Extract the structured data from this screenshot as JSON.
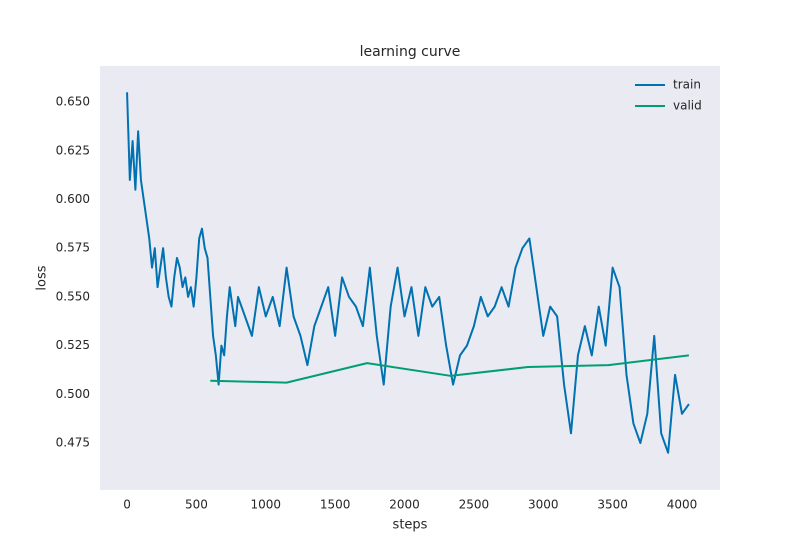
{
  "chart_data": {
    "type": "line",
    "title": "learning curve",
    "x_label": "steps",
    "y_label": "loss",
    "xlim": [
      -195,
      4274
    ],
    "ylim": [
      0.4509,
      0.6685
    ],
    "xticks": [
      0,
      500,
      1000,
      1500,
      2000,
      2500,
      3000,
      3500,
      4000
    ],
    "yticks": [
      0.475,
      {
        "value": 0.5,
        "label": "0.500"
      },
      0.525,
      {
        "value": 0.55,
        "label": "0.550"
      },
      0.575,
      {
        "value": 0.6,
        "label": "0.600"
      },
      0.625,
      {
        "value": 0.65,
        "label": "0.650"
      }
    ],
    "grid": false,
    "legend": "upper right",
    "series": [
      {
        "name": "train",
        "color": "#0072b2",
        "x": [
          0,
          20,
          40,
          60,
          80,
          100,
          120,
          140,
          160,
          180,
          200,
          220,
          240,
          260,
          280,
          300,
          320,
          340,
          360,
          380,
          400,
          420,
          440,
          460,
          480,
          500,
          520,
          540,
          560,
          580,
          600,
          620,
          640,
          660,
          680,
          700,
          720,
          740,
          760,
          780,
          800,
          850,
          900,
          950,
          1000,
          1050,
          1100,
          1150,
          1200,
          1250,
          1300,
          1350,
          1400,
          1450,
          1500,
          1550,
          1600,
          1650,
          1700,
          1750,
          1800,
          1850,
          1900,
          1950,
          2000,
          2050,
          2100,
          2150,
          2200,
          2250,
          2300,
          2350,
          2400,
          2450,
          2500,
          2550,
          2600,
          2650,
          2700,
          2750,
          2800,
          2850,
          2900,
          2950,
          3000,
          3050,
          3100,
          3150,
          3200,
          3250,
          3300,
          3350,
          3400,
          3450,
          3500,
          3550,
          3600,
          3650,
          3700,
          3750,
          3800,
          3850,
          3900,
          3950,
          4000,
          4050
        ],
        "values": [
          0.655,
          0.61,
          0.63,
          0.605,
          0.635,
          0.61,
          0.6,
          0.59,
          0.58,
          0.565,
          0.575,
          0.555,
          0.565,
          0.575,
          0.56,
          0.55,
          0.545,
          0.56,
          0.57,
          0.565,
          0.555,
          0.56,
          0.55,
          0.555,
          0.545,
          0.56,
          0.58,
          0.585,
          0.575,
          0.57,
          0.55,
          0.53,
          0.52,
          0.505,
          0.525,
          0.52,
          0.54,
          0.555,
          0.545,
          0.535,
          0.55,
          0.54,
          0.53,
          0.555,
          0.54,
          0.55,
          0.535,
          0.565,
          0.54,
          0.53,
          0.515,
          0.535,
          0.545,
          0.555,
          0.53,
          0.56,
          0.55,
          0.545,
          0.535,
          0.565,
          0.53,
          0.505,
          0.545,
          0.565,
          0.54,
          0.555,
          0.53,
          0.555,
          0.545,
          0.55,
          0.525,
          0.505,
          0.52,
          0.525,
          0.535,
          0.55,
          0.54,
          0.545,
          0.555,
          0.545,
          0.565,
          0.575,
          0.58,
          0.555,
          0.53,
          0.545,
          0.54,
          0.505,
          0.48,
          0.52,
          0.535,
          0.52,
          0.545,
          0.525,
          0.565,
          0.555,
          0.51,
          0.485,
          0.475,
          0.49,
          0.53,
          0.48,
          0.47,
          0.51,
          0.49,
          0.495
        ]
      },
      {
        "name": "valid",
        "color": "#009e73",
        "x": [
          600,
          1150,
          1730,
          2330,
          2890,
          3470,
          4050
        ],
        "values": [
          0.507,
          0.506,
          0.516,
          0.5095,
          0.514,
          0.515,
          0.52
        ]
      }
    ]
  }
}
